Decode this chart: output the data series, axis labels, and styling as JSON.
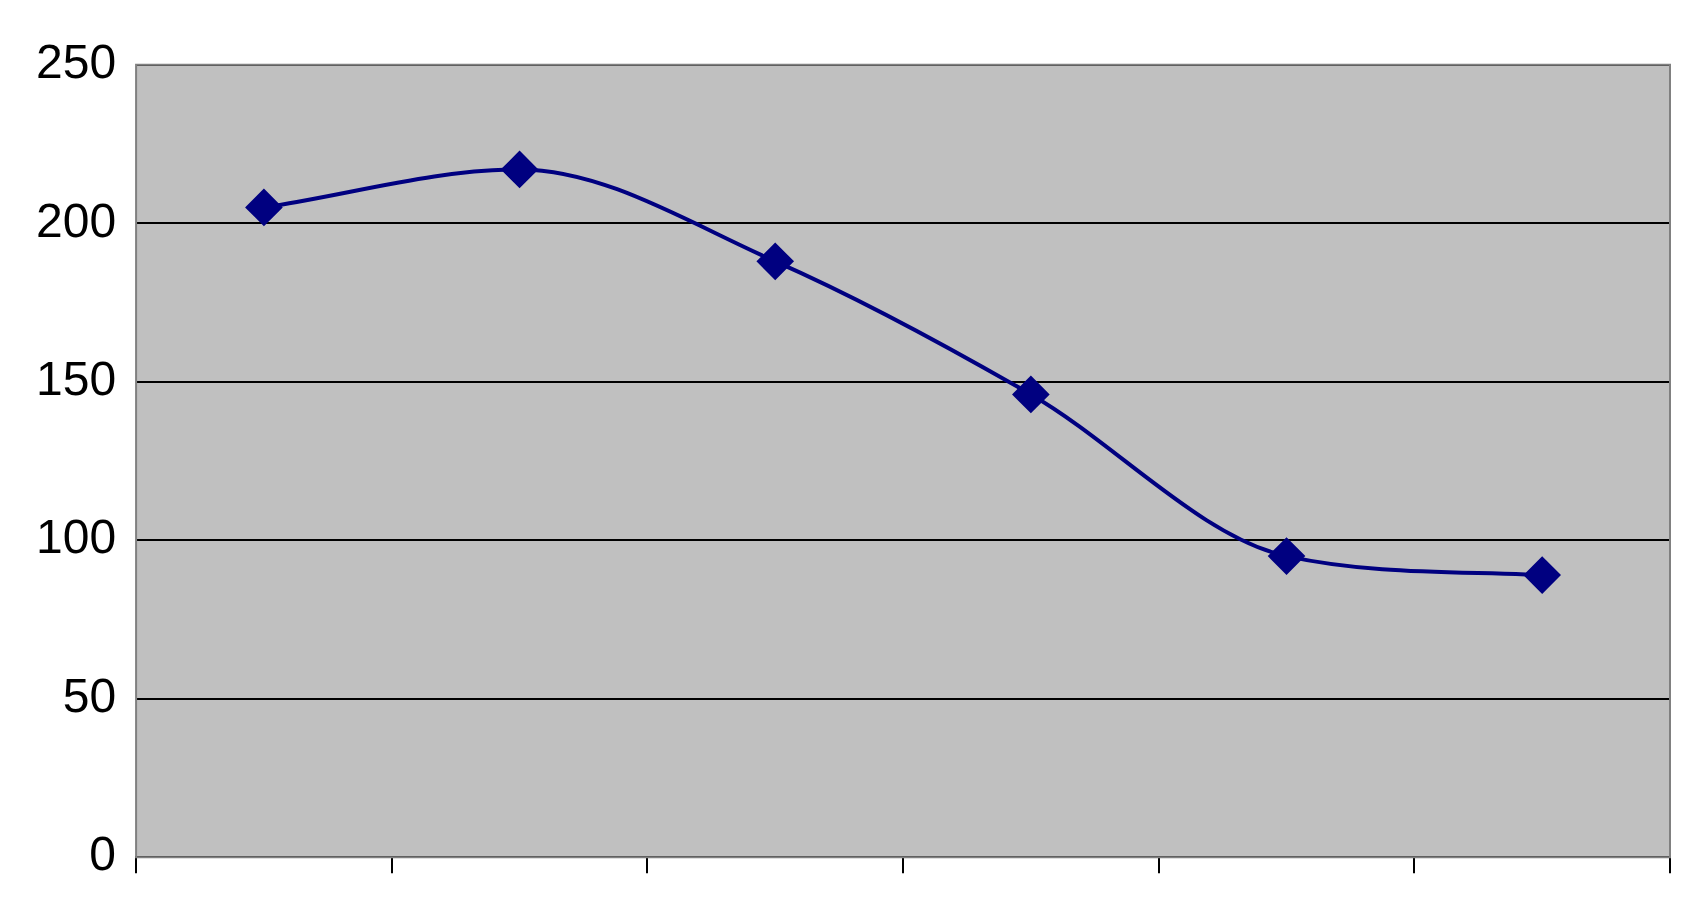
{
  "chart_data": {
    "type": "line",
    "categories": [
      null,
      null,
      null,
      null,
      null,
      null
    ],
    "series": [
      {
        "color": "#000080",
        "values": [
          205,
          217,
          188,
          146,
          95,
          89
        ]
      }
    ],
    "ylim": [
      0,
      250
    ],
    "yticks": [
      0,
      50,
      100,
      150,
      200,
      250
    ],
    "grid": "y",
    "marker": "diamond",
    "line_style": "solid",
    "legend": false,
    "tick_labels": "y"
  }
}
